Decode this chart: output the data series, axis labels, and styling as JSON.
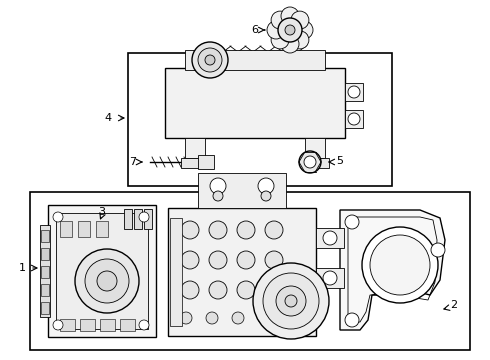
{
  "bg_color": "#ffffff",
  "lc": "#000000",
  "figsize": [
    4.9,
    3.6
  ],
  "dpi": 100
}
